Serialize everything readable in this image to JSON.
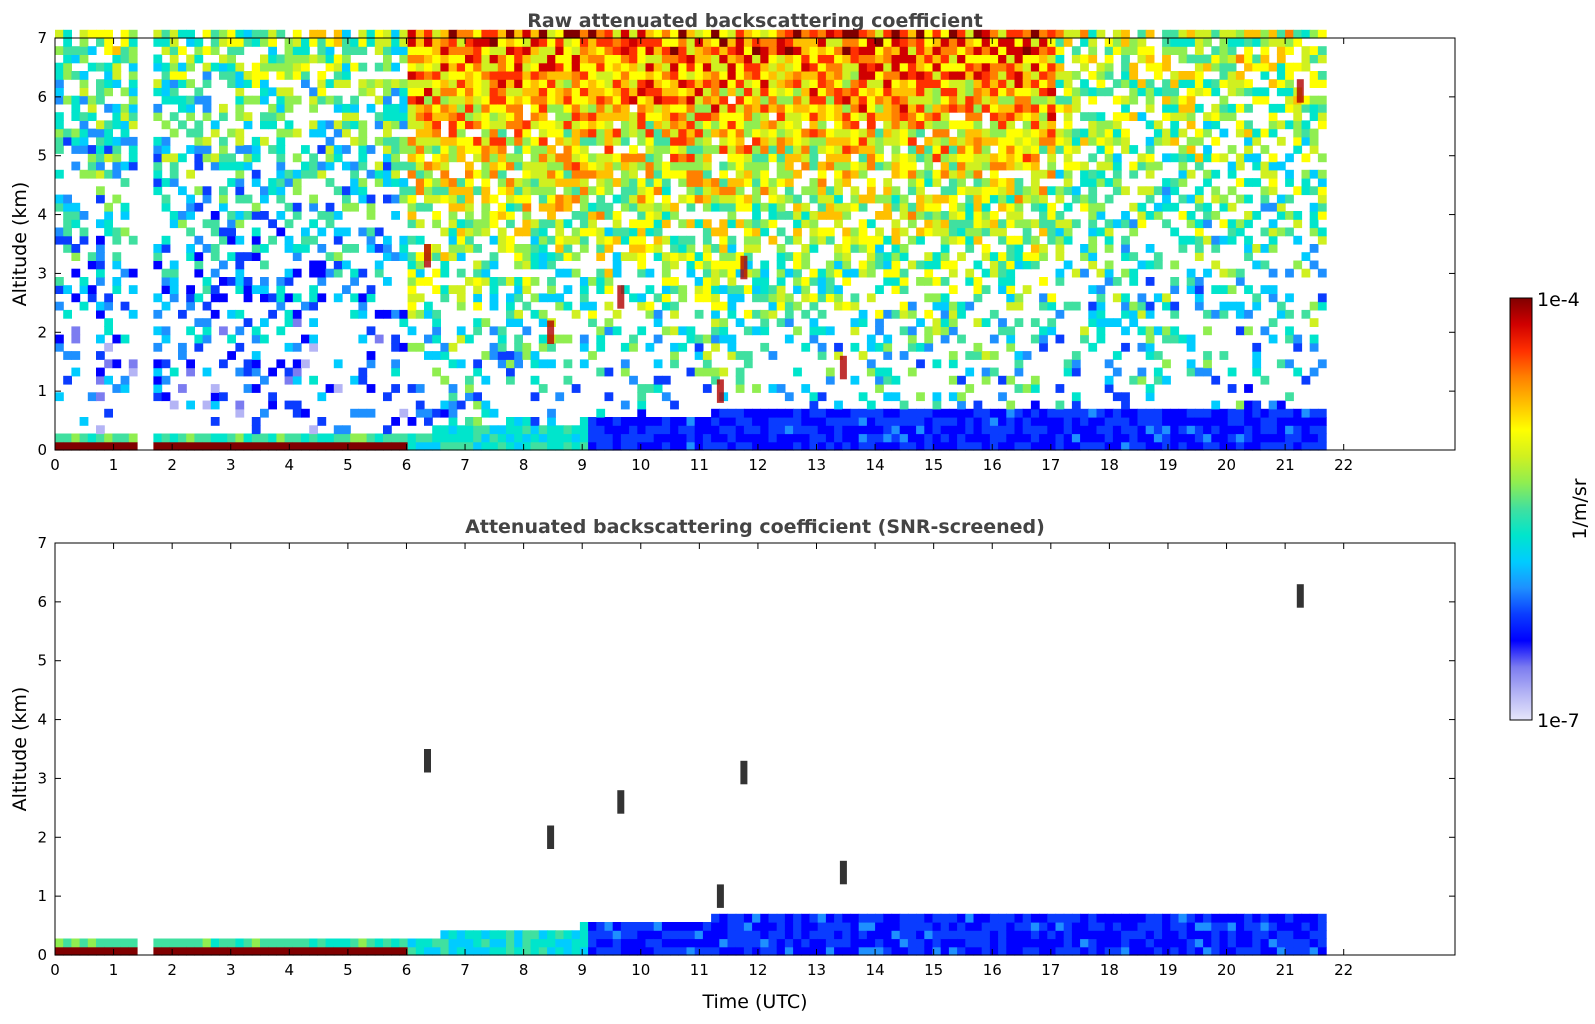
{
  "chart_data": [
    {
      "type": "heatmap",
      "title": "Raw attenuated backscattering coefficient",
      "xlabel": "",
      "ylabel": "Altitude (km)",
      "xlim": [
        0,
        23.9
      ],
      "ylim": [
        0,
        7
      ],
      "xticks": [
        0,
        1,
        2,
        3,
        4,
        5,
        6,
        7,
        8,
        9,
        10,
        11,
        12,
        13,
        14,
        15,
        16,
        17,
        18,
        19,
        20,
        21,
        22
      ],
      "yticks": [
        0,
        1,
        2,
        3,
        4,
        5,
        6,
        7
      ],
      "data_extent_hours": [
        0,
        21.65
      ],
      "data_gap_hours": [
        1.42,
        1.55
      ],
      "features": {
        "surface_layer": {
          "time": [
            0,
            6.0
          ],
          "top_km": 0.25
        },
        "boundary_layer_growth": {
          "time": [
            6.0,
            21.65
          ],
          "top_km": [
            0.3,
            0.6
          ]
        },
        "noise": "increasing with altitude and daylight",
        "cloud_streaks_km": [
          [
            6.3,
            3.5
          ],
          [
            8.4,
            2.2
          ],
          [
            9.6,
            2.8
          ],
          [
            11.3,
            1.2
          ],
          [
            11.7,
            3.3
          ],
          [
            13.4,
            1.6
          ],
          [
            21.2,
            6.3
          ]
        ]
      }
    },
    {
      "type": "heatmap",
      "title": "Attenuated backscattering coefficient (SNR-screened)",
      "xlabel": "Time (UTC)",
      "ylabel": "Altitude (km)",
      "xlim": [
        0,
        23.9
      ],
      "ylim": [
        0,
        7
      ],
      "xticks": [
        0,
        1,
        2,
        3,
        4,
        5,
        6,
        7,
        8,
        9,
        10,
        11,
        12,
        13,
        14,
        15,
        16,
        17,
        18,
        19,
        20,
        21,
        22
      ],
      "yticks": [
        0,
        1,
        2,
        3,
        4,
        5,
        6,
        7
      ],
      "data_extent_hours": [
        0,
        21.65
      ],
      "data_gap_hours": [
        1.42,
        1.55
      ]
    }
  ],
  "colorbar": {
    "label": "1/m/sr",
    "max_label": "1e-4",
    "min_label": "1e-7",
    "scale": "log",
    "colors": [
      "#e6e6fa",
      "#b4b4f5",
      "#7c7cf0",
      "#0000ff",
      "#0a3cff",
      "#1e90ff",
      "#00ccff",
      "#00e5cc",
      "#40e0a0",
      "#90ee50",
      "#d0f020",
      "#ffff00",
      "#ffc000",
      "#ff8000",
      "#ff3000",
      "#d00000",
      "#800000"
    ]
  }
}
